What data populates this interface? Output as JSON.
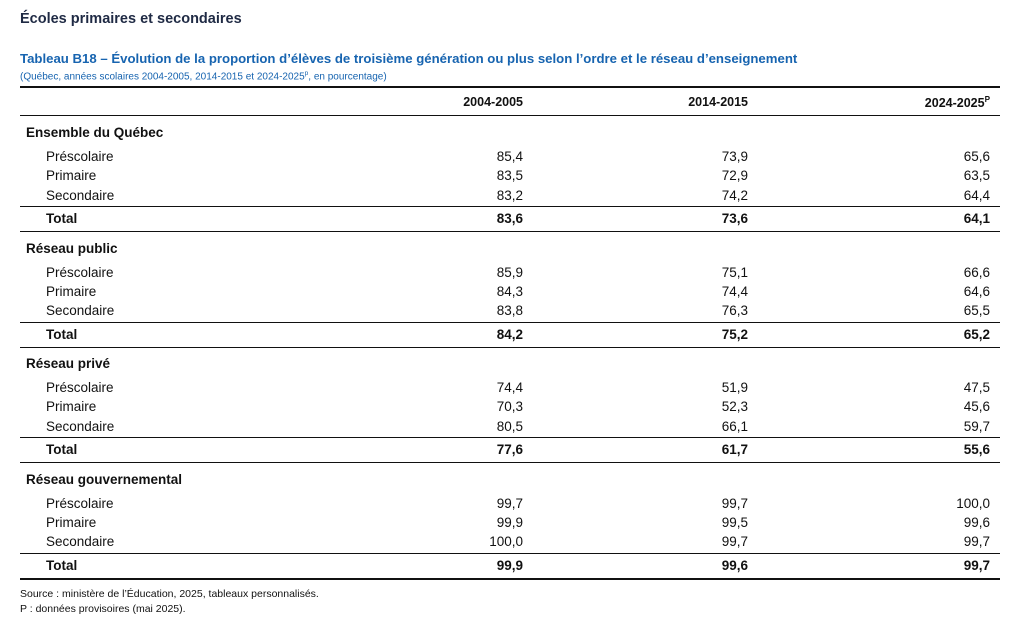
{
  "header": {
    "section": "Écoles primaires et secondaires"
  },
  "table": {
    "title": "Tableau B18 – Évolution de la proportion d’élèves de troisième génération ou plus selon l’ordre et le réseau d’enseignement",
    "subtitle": {
      "before": "(Québec, années scolaires 2004-2005, 2014-2015 et 2024-2025",
      "sup": "p",
      "after": ", en pourcentage)"
    },
    "columns": [
      {
        "text": "2004-2005"
      },
      {
        "text": "2014-2015"
      },
      {
        "text": "2024-2025",
        "sup": "P"
      }
    ],
    "groups": [
      {
        "name": "Ensemble du Québec",
        "rows": [
          {
            "label": "Préscolaire",
            "values": [
              "85,4",
              "73,9",
              "65,6"
            ]
          },
          {
            "label": "Primaire",
            "values": [
              "83,5",
              "72,9",
              "63,5"
            ]
          },
          {
            "label": "Secondaire",
            "values": [
              "83,2",
              "74,2",
              "64,4"
            ]
          }
        ],
        "total": {
          "label": "Total",
          "values": [
            "83,6",
            "73,6",
            "64,1"
          ]
        }
      },
      {
        "name": "Réseau public",
        "rows": [
          {
            "label": "Préscolaire",
            "values": [
              "85,9",
              "75,1",
              "66,6"
            ]
          },
          {
            "label": "Primaire",
            "values": [
              "84,3",
              "74,4",
              "64,6"
            ]
          },
          {
            "label": "Secondaire",
            "values": [
              "83,8",
              "76,3",
              "65,5"
            ]
          }
        ],
        "total": {
          "label": "Total",
          "values": [
            "84,2",
            "75,2",
            "65,2"
          ]
        }
      },
      {
        "name": "Réseau privé",
        "rows": [
          {
            "label": "Préscolaire",
            "values": [
              "74,4",
              "51,9",
              "47,5"
            ]
          },
          {
            "label": "Primaire",
            "values": [
              "70,3",
              "52,3",
              "45,6"
            ]
          },
          {
            "label": "Secondaire",
            "values": [
              "80,5",
              "66,1",
              "59,7"
            ]
          }
        ],
        "total": {
          "label": "Total",
          "values": [
            "77,6",
            "61,7",
            "55,6"
          ]
        }
      },
      {
        "name": "Réseau gouvernemental",
        "rows": [
          {
            "label": "Préscolaire",
            "values": [
              "99,7",
              "99,7",
              "100,0"
            ]
          },
          {
            "label": "Primaire",
            "values": [
              "99,9",
              "99,5",
              "99,6"
            ]
          },
          {
            "label": "Secondaire",
            "values": [
              "100,0",
              "99,7",
              "99,7"
            ]
          }
        ],
        "total": {
          "label": "Total",
          "values": [
            "99,9",
            "99,6",
            "99,7"
          ]
        }
      }
    ]
  },
  "footer": {
    "source": "Source : ministère de l’Éducation, 2025, tableaux personnalisés.",
    "note": "P : données provisoires (mai 2025)."
  }
}
